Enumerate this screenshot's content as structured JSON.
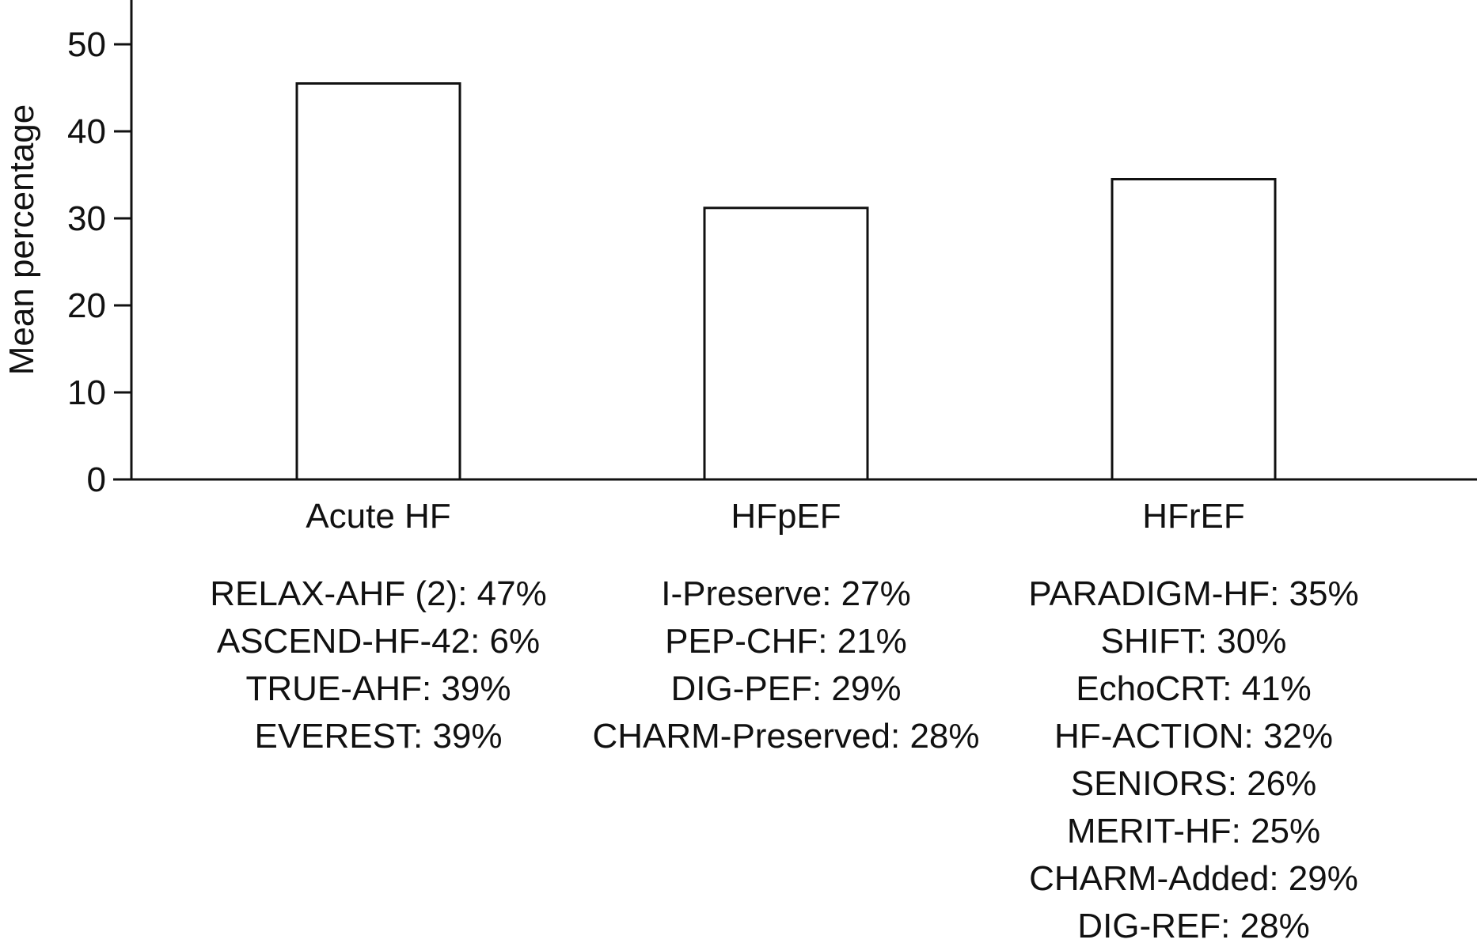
{
  "chart_data": {
    "type": "bar",
    "categories": [
      "Acute HF",
      "HFpEF",
      "HFrEF"
    ],
    "values": [
      45.5,
      31.2,
      34.5
    ],
    "title": "",
    "xlabel": "",
    "ylabel": "Mean percentage",
    "ylim": [
      0,
      55
    ],
    "yticks": [
      0,
      10,
      20,
      30,
      40,
      50
    ],
    "ytick_labels": [
      "0",
      "10",
      "20",
      "30",
      "40",
      "50"
    ],
    "grid": false,
    "bar_fill": "#ffffff",
    "bar_stroke": "#111111",
    "annotations": [
      {
        "category": "Acute HF",
        "lines": [
          "RELAX-AHF (2): 47%",
          "ASCEND-HF-42: 6%",
          "TRUE-AHF: 39%",
          "EVEREST: 39%"
        ]
      },
      {
        "category": "HFpEF",
        "lines": [
          "I-Preserve: 27%",
          "PEP-CHF: 21%",
          "DIG-PEF: 29%",
          "CHARM-Preserved: 28%"
        ]
      },
      {
        "category": "HFrEF",
        "lines": [
          "PARADIGM-HF: 35%",
          "SHIFT: 30%",
          "EchoCRT: 41%",
          "HF-ACTION: 32%",
          "SENIORS: 26%",
          "MERIT-HF: 25%",
          "CHARM-Added: 29%",
          "DIG-REF: 28%"
        ]
      }
    ]
  }
}
